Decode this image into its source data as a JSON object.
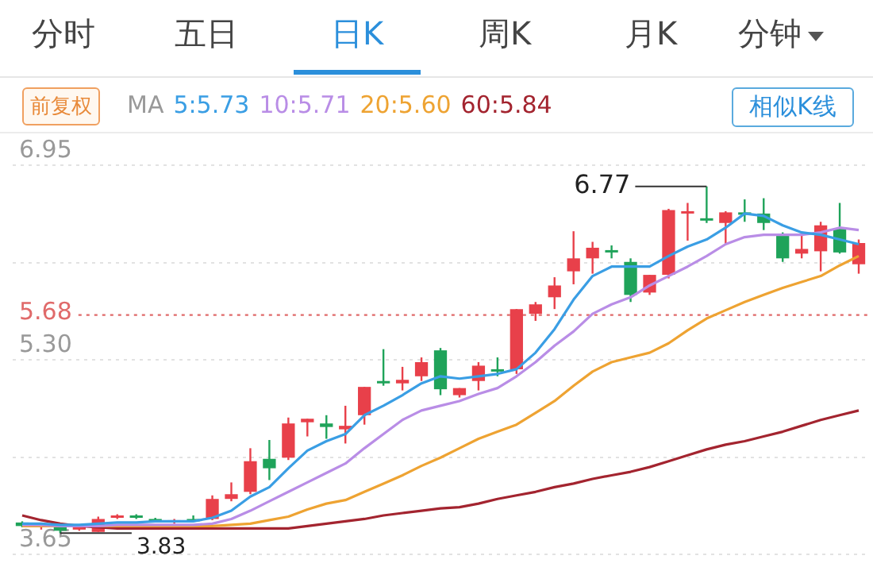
{
  "chart_data": {
    "type": "candlestick",
    "categories": [
      null,
      null,
      null,
      null,
      null,
      null,
      null,
      null,
      null,
      null,
      null,
      null,
      null,
      null,
      null,
      null,
      null,
      null,
      null,
      null,
      null,
      null,
      null,
      null,
      null,
      null,
      null,
      null,
      null,
      null,
      null,
      null,
      null,
      null,
      null,
      null,
      null,
      null,
      null,
      null,
      null,
      null,
      null,
      null,
      null
    ],
    "ohlc": [
      [
        3.92,
        3.93,
        3.88,
        3.89
      ],
      [
        3.88,
        3.91,
        3.86,
        3.9
      ],
      [
        3.88,
        3.89,
        3.83,
        3.85
      ],
      [
        3.86,
        3.89,
        3.85,
        3.88
      ],
      [
        3.84,
        3.97,
        3.84,
        3.95
      ],
      [
        3.96,
        3.99,
        3.95,
        3.98
      ],
      [
        3.98,
        3.99,
        3.95,
        3.96
      ],
      [
        3.95,
        3.96,
        3.92,
        3.93
      ],
      [
        3.92,
        3.95,
        3.91,
        3.94
      ],
      [
        3.95,
        3.98,
        3.93,
        3.94
      ],
      [
        3.95,
        4.15,
        3.94,
        4.12
      ],
      [
        4.12,
        4.26,
        4.1,
        4.16
      ],
      [
        4.18,
        4.55,
        4.16,
        4.44
      ],
      [
        4.46,
        4.62,
        4.28,
        4.38
      ],
      [
        4.47,
        4.81,
        4.45,
        4.76
      ],
      [
        4.77,
        4.8,
        4.65,
        4.8
      ],
      [
        4.76,
        4.83,
        4.63,
        4.73
      ],
      [
        4.71,
        4.91,
        4.59,
        4.74
      ],
      [
        4.83,
        5.07,
        4.75,
        5.07
      ],
      [
        5.12,
        5.39,
        5.08,
        5.1
      ],
      [
        5.1,
        5.24,
        5.04,
        5.13
      ],
      [
        5.16,
        5.32,
        5.12,
        5.28
      ],
      [
        5.38,
        5.4,
        5.0,
        5.05
      ],
      [
        5.0,
        5.06,
        4.98,
        5.06
      ],
      [
        5.12,
        5.28,
        5.04,
        5.25
      ],
      [
        5.22,
        5.32,
        5.16,
        5.21
      ],
      [
        5.22,
        5.73,
        5.18,
        5.73
      ],
      [
        5.69,
        5.79,
        5.63,
        5.77
      ],
      [
        5.83,
        6.0,
        5.73,
        5.93
      ],
      [
        6.05,
        6.39,
        5.94,
        6.16
      ],
      [
        6.16,
        6.3,
        6.03,
        6.25
      ],
      [
        6.23,
        6.27,
        6.16,
        6.22
      ],
      [
        6.13,
        6.16,
        5.79,
        5.85
      ],
      [
        5.87,
        6.02,
        5.85,
        6.02
      ],
      [
        6.02,
        6.58,
        5.99,
        6.57
      ],
      [
        6.55,
        6.63,
        6.31,
        6.56
      ],
      [
        6.5,
        6.77,
        6.46,
        6.48
      ],
      [
        6.46,
        6.56,
        6.28,
        6.55
      ],
      [
        6.55,
        6.66,
        6.47,
        6.54
      ],
      [
        6.54,
        6.67,
        6.4,
        6.46
      ],
      [
        6.37,
        6.38,
        6.13,
        6.16
      ],
      [
        6.2,
        6.36,
        6.16,
        6.24
      ],
      [
        6.22,
        6.47,
        6.05,
        6.44
      ],
      [
        6.41,
        6.63,
        6.2,
        6.21
      ],
      [
        6.11,
        6.32,
        6.03,
        6.29
      ]
    ],
    "colors": [
      "#1fa35a",
      "#e8404a",
      "#1fa35a",
      "#e8404a",
      "#e8404a",
      "#e8404a",
      "#1fa35a",
      "#1fa35a",
      "#e8404a",
      "#1fa35a",
      "#e8404a",
      "#e8404a",
      "#e8404a",
      "#1fa35a",
      "#e8404a",
      "#e8404a",
      "#1fa35a",
      "#e8404a",
      "#e8404a",
      "#1fa35a",
      "#e8404a",
      "#e8404a",
      "#1fa35a",
      "#e8404a",
      "#e8404a",
      "#1fa35a",
      "#e8404a",
      "#e8404a",
      "#e8404a",
      "#e8404a",
      "#e8404a",
      "#1fa35a",
      "#1fa35a",
      "#e8404a",
      "#e8404a",
      "#e8404a",
      "#1fa35a",
      "#e8404a",
      "#1fa35a",
      "#1fa35a",
      "#1fa35a",
      "#e8404a",
      "#e8404a",
      "#1fa35a",
      "#e8404a"
    ],
    "series": [
      {
        "type": "line",
        "name": "5:5.73",
        "color": "#3a9ee4",
        "values": [
          3.91,
          3.91,
          3.9,
          3.9,
          3.91,
          3.92,
          3.92,
          3.93,
          3.93,
          3.93,
          3.96,
          4.02,
          4.14,
          4.22,
          4.38,
          4.53,
          4.61,
          4.67,
          4.83,
          4.91,
          5.0,
          5.1,
          5.16,
          5.14,
          5.16,
          5.18,
          5.22,
          5.36,
          5.56,
          5.81,
          6.01,
          6.09,
          6.09,
          6.09,
          6.18,
          6.26,
          6.32,
          6.42,
          6.54,
          6.52,
          6.44,
          6.38,
          6.36,
          6.32,
          6.28
        ]
      },
      {
        "type": "line",
        "name": "10:5.71",
        "color": "#b98de6",
        "values": [
          3.9,
          3.9,
          3.89,
          3.89,
          3.89,
          3.9,
          3.9,
          3.9,
          3.9,
          3.9,
          3.91,
          3.95,
          4.02,
          4.1,
          4.18,
          4.26,
          4.34,
          4.42,
          4.55,
          4.67,
          4.79,
          4.87,
          4.91,
          4.95,
          5.01,
          5.06,
          5.16,
          5.28,
          5.42,
          5.54,
          5.69,
          5.77,
          5.83,
          5.93,
          6.01,
          6.09,
          6.18,
          6.28,
          6.34,
          6.36,
          6.36,
          6.36,
          6.38,
          6.42,
          6.4
        ]
      },
      {
        "type": "line",
        "name": "20:5.60",
        "color": "#eea332",
        "values": [
          3.89,
          3.89,
          3.89,
          3.89,
          3.89,
          3.89,
          3.89,
          3.89,
          3.89,
          3.89,
          3.89,
          3.9,
          3.91,
          3.94,
          3.97,
          4.03,
          4.08,
          4.11,
          4.18,
          4.25,
          4.32,
          4.4,
          4.47,
          4.55,
          4.63,
          4.69,
          4.75,
          4.85,
          4.95,
          5.08,
          5.2,
          5.28,
          5.32,
          5.36,
          5.44,
          5.55,
          5.65,
          5.72,
          5.79,
          5.85,
          5.91,
          5.96,
          6.01,
          6.1,
          6.18
        ]
      },
      {
        "type": "line",
        "name": "60:5.84",
        "color": "#a3242f",
        "values": [
          3.98,
          3.94,
          3.91,
          3.89,
          3.88,
          3.87,
          3.87,
          3.87,
          3.87,
          3.87,
          3.87,
          3.87,
          3.87,
          3.87,
          3.87,
          3.89,
          3.91,
          3.93,
          3.95,
          3.98,
          4.0,
          4.02,
          4.04,
          4.05,
          4.08,
          4.12,
          4.15,
          4.18,
          4.22,
          4.25,
          4.29,
          4.32,
          4.35,
          4.39,
          4.44,
          4.49,
          4.54,
          4.58,
          4.61,
          4.65,
          4.69,
          4.74,
          4.79,
          4.83,
          4.87
        ]
      }
    ],
    "legend_title": "MA",
    "legend": "top left",
    "ylim": [
      3.65,
      6.95
    ],
    "yticks": [
      6.95,
      {
        "value": 6.125,
        "label": null
      },
      {
        "value": 5.3,
        "label": "5.30"
      },
      {
        "value": 4.475,
        "label": null
      },
      3.65
    ],
    "grid": "y",
    "tick_labels": "y",
    "ref_lines": [
      {
        "axis": "y",
        "value": 5.68,
        "label": "5.68",
        "color": "#e06a6a",
        "line_style": "dotted"
      }
    ],
    "annotations": [
      "分时",
      "五日",
      "日K",
      "周K",
      "月K",
      "分钟",
      "前复权",
      "相似K线",
      "6.77",
      "3.83"
    ]
  }
}
